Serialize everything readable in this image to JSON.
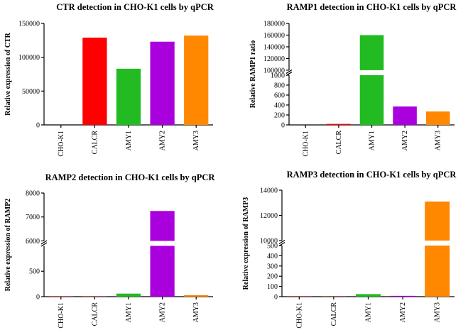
{
  "chart_data": [
    {
      "type": "bar",
      "title": "CTR detection in CHO-K1 cells by qPCR",
      "y_label": "Relative expression of  CTR",
      "categories": [
        "CHO-K1",
        "CALCR",
        "AMY1",
        "AMY2",
        "AMY3"
      ],
      "values": [
        0,
        129000,
        83000,
        123000,
        132000
      ],
      "colors": [
        "#ff0000",
        "#ff0000",
        "#22bb22",
        "#aa00dd",
        "#ff8800"
      ],
      "ylim": [
        0,
        150000
      ],
      "yticks": [
        0,
        50000,
        100000,
        150000
      ]
    },
    {
      "type": "bar",
      "title": "RAMP1 detection in CHO-K1 cells by qPCR",
      "y_label": "Relative RAMP1 ratio",
      "categories": [
        "CHO-K1",
        "CALCR",
        "AMY1",
        "AMY2",
        "AMY3"
      ],
      "values": [
        1,
        20,
        160000,
        370,
        270
      ],
      "colors": [
        "#ff0000",
        "#ff0000",
        "#22bb22",
        "#aa00dd",
        "#ff8800"
      ],
      "segments": [
        {
          "ylim": [
            0,
            1000
          ],
          "yticks": [
            0,
            200,
            400,
            600,
            800,
            1000
          ]
        },
        {
          "ylim": [
            100000,
            180000
          ],
          "yticks": [
            100000,
            120000,
            140000,
            160000,
            180000
          ]
        }
      ]
    },
    {
      "type": "bar",
      "title": "RAMP2 detection in CHO-K1 cells by qPCR",
      "y_label": "Relative expression of RAMP2",
      "categories": [
        "CHO-K1",
        "CALCR",
        "AMY1",
        "AMY2",
        "AMY3"
      ],
      "values": [
        5,
        5,
        60,
        7250,
        30
      ],
      "colors": [
        "#ff0000",
        "#ff0000",
        "#22bb22",
        "#aa00dd",
        "#ff8800"
      ],
      "segments": [
        {
          "ylim": [
            0,
            1000
          ],
          "yticks": [
            0,
            500
          ]
        },
        {
          "ylim": [
            6000,
            8000
          ],
          "yticks": [
            6000,
            7000,
            8000
          ]
        }
      ]
    },
    {
      "type": "bar",
      "title": "RAMP3 detection in CHO-K1 cells by qPCR",
      "y_label": "Relative expression of RAMP3",
      "categories": [
        "CHO-K1",
        "CALCR",
        "AMY1",
        "AMY2",
        "AMY3"
      ],
      "values": [
        2,
        2,
        25,
        8,
        13100
      ],
      "colors": [
        "#ff0000",
        "#ff0000",
        "#22bb22",
        "#aa00dd",
        "#ff8800"
      ],
      "segments": [
        {
          "ylim": [
            0,
            500
          ],
          "yticks": [
            0,
            100,
            200,
            300,
            400,
            500
          ]
        },
        {
          "ylim": [
            10000,
            14000
          ],
          "yticks": [
            10000,
            12000,
            14000
          ]
        }
      ]
    }
  ]
}
